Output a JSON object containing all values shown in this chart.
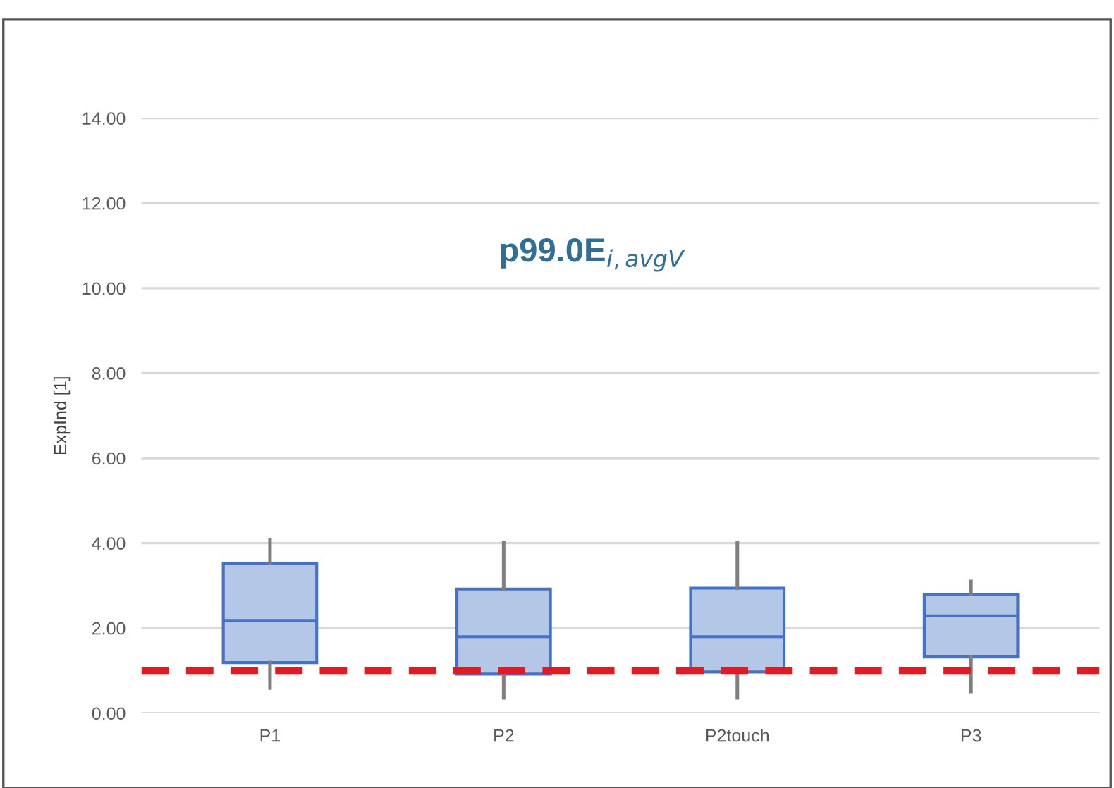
{
  "chart_data": {
    "type": "box",
    "title": "p99.0E$_{i,avgV}$",
    "ylabel": "ExpInd [1]",
    "categories": [
      "P1",
      "P2",
      "P2touch",
      "P3"
    ],
    "series": [
      {
        "color": "#b4c7e7",
        "boxes": [
          {
            "low": 0.59,
            "q1": 1.19,
            "median": 2.18,
            "q3": 3.53,
            "high": 4.08
          },
          {
            "low": 0.36,
            "q1": 0.92,
            "median": 1.8,
            "q3": 2.92,
            "high": 4.0
          },
          {
            "low": 0.36,
            "q1": 0.97,
            "median": 1.8,
            "q3": 2.94,
            "high": 4.0
          },
          {
            "low": 0.51,
            "q1": 1.32,
            "median": 2.29,
            "q3": 2.79,
            "high": 3.1
          }
        ]
      }
    ],
    "ylim": [
      0,
      14
    ],
    "yticks": [
      {
        "value": 0,
        "label": "0.00"
      },
      {
        "value": 2,
        "label": "2.00"
      },
      {
        "value": 4,
        "label": "4.00"
      },
      {
        "value": 6,
        "label": "6.00"
      },
      {
        "value": 8,
        "label": "8.00"
      },
      {
        "value": 10,
        "label": "10.00"
      },
      {
        "value": 12,
        "label": "12.00"
      },
      {
        "value": 14,
        "label": "14.00"
      }
    ],
    "ref_lines": [
      {
        "axis": "y",
        "value": 1.0,
        "label": null,
        "color": "#e8191e",
        "line_style": "dashed"
      }
    ],
    "grid": "y",
    "legend": false
  }
}
